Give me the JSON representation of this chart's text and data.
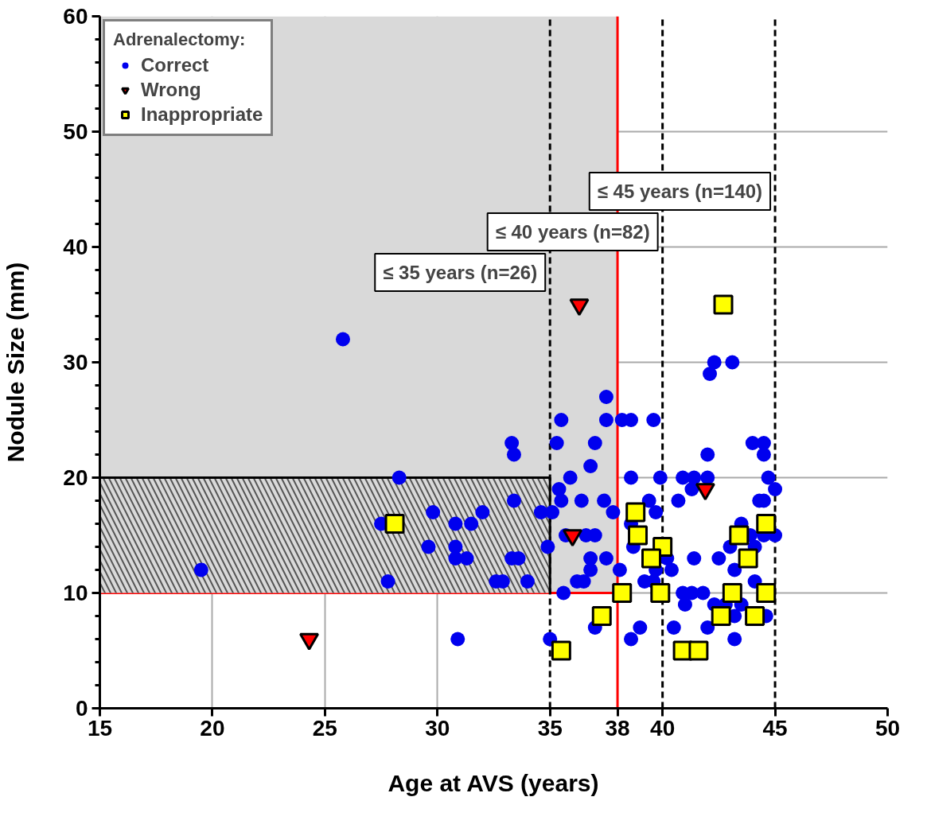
{
  "chart_data": {
    "type": "scatter",
    "xlabel": "Age at AVS (years)",
    "ylabel": "Nodule Size (mm)",
    "legend_title": "Adrenalectomy:",
    "legend": "top left",
    "grid": true,
    "xlim": [
      15,
      50
    ],
    "xticks": [
      15,
      20,
      25,
      30,
      35,
      {
        "value": 38,
        "label": "38"
      },
      40,
      45,
      50
    ],
    "ylim": [
      0,
      60
    ],
    "yticks": [
      0,
      10,
      20,
      30,
      40,
      50,
      60
    ],
    "series": [
      {
        "name": "Correct",
        "color": "#0000ee",
        "marker": "circle",
        "x": [
          19.5,
          25.8,
          28.3,
          27.5,
          27.8,
          33.3,
          33.4,
          33.4,
          29.8,
          32.0,
          34.6,
          35.1,
          30.8,
          31.5,
          29.6,
          30.8,
          30.8,
          31.3,
          33.3,
          33.6,
          32.6,
          32.9,
          34.0,
          30.9,
          34.9,
          42.3,
          43.1,
          42.1,
          37.5,
          35.5,
          37.5,
          38.2,
          38.6,
          39.6,
          35.3,
          37.0,
          44.0,
          44.5,
          44.5,
          42.0,
          36.8,
          35.9,
          38.6,
          39.9,
          40.9,
          41.4,
          42.0,
          44.7,
          45.0,
          41.3,
          35.4,
          35.5,
          36.4,
          37.4,
          39.4,
          40.7,
          44.3,
          44.5,
          37.8,
          39.7,
          38.6,
          43.5,
          35.7,
          36.6,
          37.0,
          43.9,
          44.5,
          45.0,
          38.7,
          43.0,
          44.1,
          36.8,
          37.5,
          40.2,
          41.4,
          42.5,
          36.8,
          38.1,
          39.7,
          40.4,
          43.2,
          36.2,
          36.5,
          39.2,
          39.6,
          44.1,
          35.6,
          40.9,
          41.3,
          41.8,
          41.0,
          42.3,
          42.8,
          43.5,
          43.2,
          44.6,
          37.0,
          39.0,
          40.5,
          42.0,
          38.6,
          35.0,
          43.2
        ],
        "values": [
          12,
          32,
          20,
          16,
          11,
          23,
          22,
          18,
          17,
          17,
          17,
          17,
          16,
          16,
          14,
          14,
          13,
          13,
          13,
          13,
          11,
          11,
          11,
          6,
          14,
          30,
          30,
          29,
          27,
          25,
          25,
          25,
          25,
          25,
          23,
          23,
          23,
          23,
          22,
          22,
          21,
          20,
          20,
          20,
          20,
          20,
          20,
          20,
          19,
          19,
          19,
          18,
          18,
          18,
          18,
          18,
          18,
          18,
          17,
          17,
          16,
          16,
          15,
          15,
          15,
          15,
          15,
          15,
          14,
          14,
          14,
          13,
          13,
          13,
          13,
          13,
          12,
          12,
          12,
          12,
          12,
          11,
          11,
          11,
          11,
          11,
          10,
          10,
          10,
          10,
          9,
          9,
          9,
          9,
          8,
          8,
          7,
          7,
          7,
          7,
          6,
          6,
          6
        ]
      },
      {
        "name": "Wrong",
        "color": "#ff0000",
        "marker": "triangle",
        "x": [
          24.3,
          36.3,
          36.0,
          41.9
        ],
        "values": [
          6,
          35,
          15,
          19
        ]
      },
      {
        "name": "Inappropriate",
        "color": "#ffff00",
        "marker": "square",
        "x": [
          28.1,
          42.7,
          38.8,
          44.6,
          38.9,
          43.4,
          40.0,
          39.5,
          43.8,
          38.2,
          39.9,
          43.1,
          44.6,
          37.3,
          42.6,
          44.1,
          35.5,
          40.9,
          41.6
        ],
        "values": [
          16,
          35,
          17,
          16,
          15,
          15,
          14,
          13,
          13,
          10,
          10,
          10,
          10,
          8,
          8,
          8,
          5,
          5,
          5
        ]
      }
    ],
    "bands": [
      {
        "axis": "x",
        "from": 15,
        "to": 38,
        "color": "#d9d9d9"
      },
      {
        "axis": "y",
        "from": 10,
        "to": 20,
        "color": "#d9d9d9"
      }
    ],
    "ref_lines": [
      {
        "axis": "x",
        "value": 35,
        "label": "≤ 35 years (n=26)",
        "line_style": "dashed",
        "color": "#000000"
      },
      {
        "axis": "x",
        "value": 40,
        "label": "≤ 40 years (n=82)",
        "line_style": "dashed",
        "color": "#000000"
      },
      {
        "axis": "x",
        "value": 45,
        "label": "≤ 45 years (n=140)",
        "line_style": "dashed",
        "color": "#000000"
      },
      {
        "axis": "x",
        "value": 38,
        "line_style": "solid",
        "color": "#ff0000"
      }
    ]
  }
}
